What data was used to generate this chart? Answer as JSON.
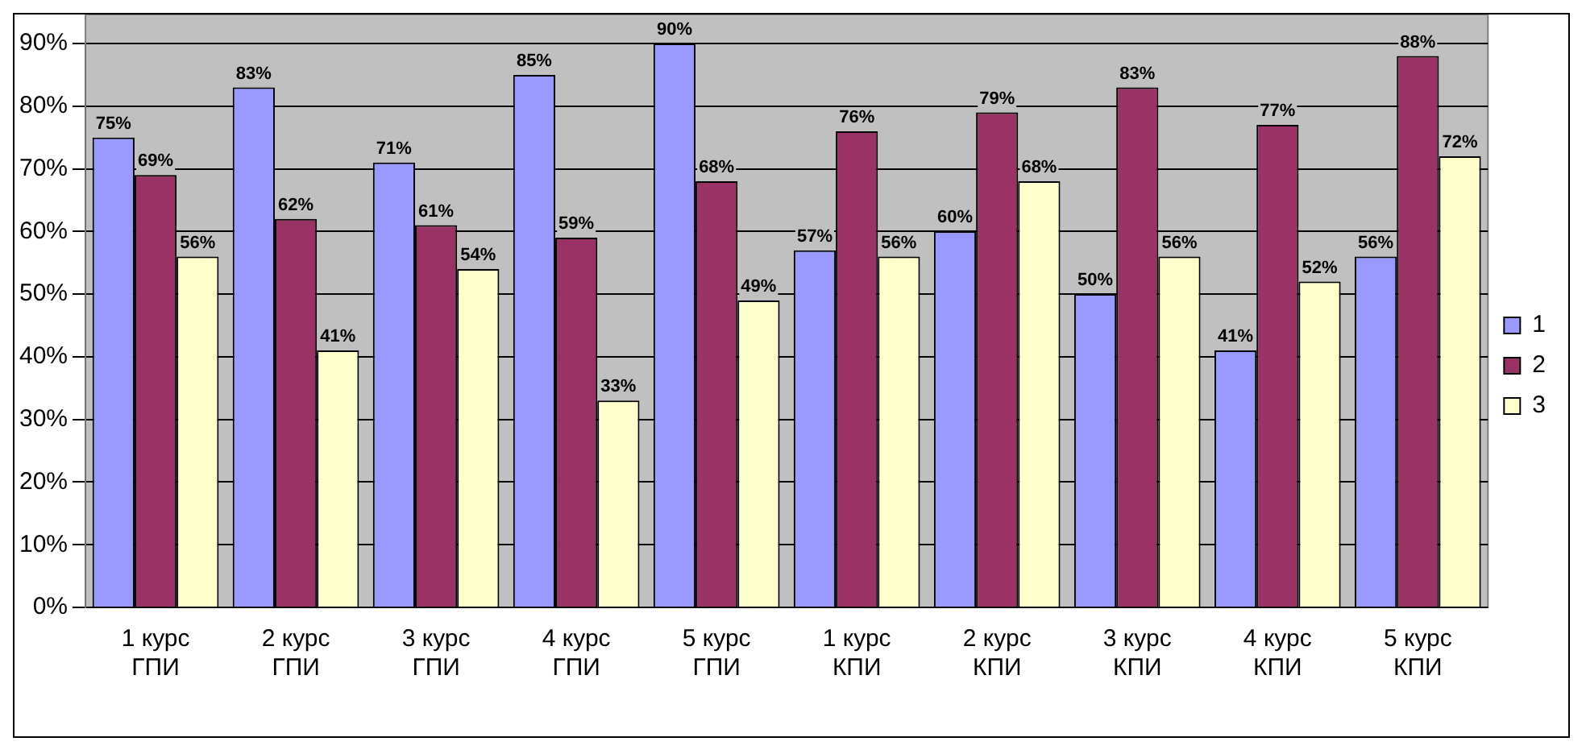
{
  "chart_data": {
    "type": "bar",
    "categories": [
      "1 курс ГПИ",
      "2 курс ГПИ",
      "3 курс ГПИ",
      "4 курс ГПИ",
      "5 курс ГПИ",
      "1 курс КПИ",
      "2 курс КПИ",
      "3 курс КПИ",
      "4 курс КПИ",
      "5 курс КПИ"
    ],
    "series": [
      {
        "name": "1",
        "color": "#9999ff",
        "values": [
          75,
          83,
          71,
          85,
          90,
          57,
          60,
          50,
          41,
          56
        ],
        "value_labels": [
          "75%",
          "83%",
          "71%",
          "85%",
          "90%",
          "57%",
          "60%",
          "50%",
          "41%",
          "56%"
        ]
      },
      {
        "name": "2",
        "color": "#993366",
        "values": [
          69,
          62,
          61,
          59,
          68,
          76,
          79,
          83,
          77,
          88
        ],
        "value_labels": [
          "69%",
          "62%",
          "61%",
          "59%",
          "68%",
          "76%",
          "79%",
          "83%",
          "77%",
          "88%"
        ]
      },
      {
        "name": "3",
        "color": "#ffffcc",
        "values": [
          56,
          41,
          54,
          33,
          49,
          56,
          68,
          56,
          52,
          72
        ],
        "value_labels": [
          "56%",
          "41%",
          "54%",
          "33%",
          "49%",
          "56%",
          "68%",
          "56%",
          "52%",
          "72%"
        ]
      }
    ],
    "ylim": [
      0,
      90
    ],
    "yticks": [
      {
        "value": 0,
        "label": "0%"
      },
      {
        "value": 10,
        "label": "10%"
      },
      {
        "value": 20,
        "label": "20%"
      },
      {
        "value": 30,
        "label": "30%"
      },
      {
        "value": 40,
        "label": "40%"
      },
      {
        "value": 50,
        "label": "50%"
      },
      {
        "value": 60,
        "label": "60%"
      },
      {
        "value": 70,
        "label": "70%"
      },
      {
        "value": 80,
        "label": "80%"
      },
      {
        "value": 90,
        "label": "90%"
      }
    ],
    "grid": "y",
    "legend": "right"
  }
}
